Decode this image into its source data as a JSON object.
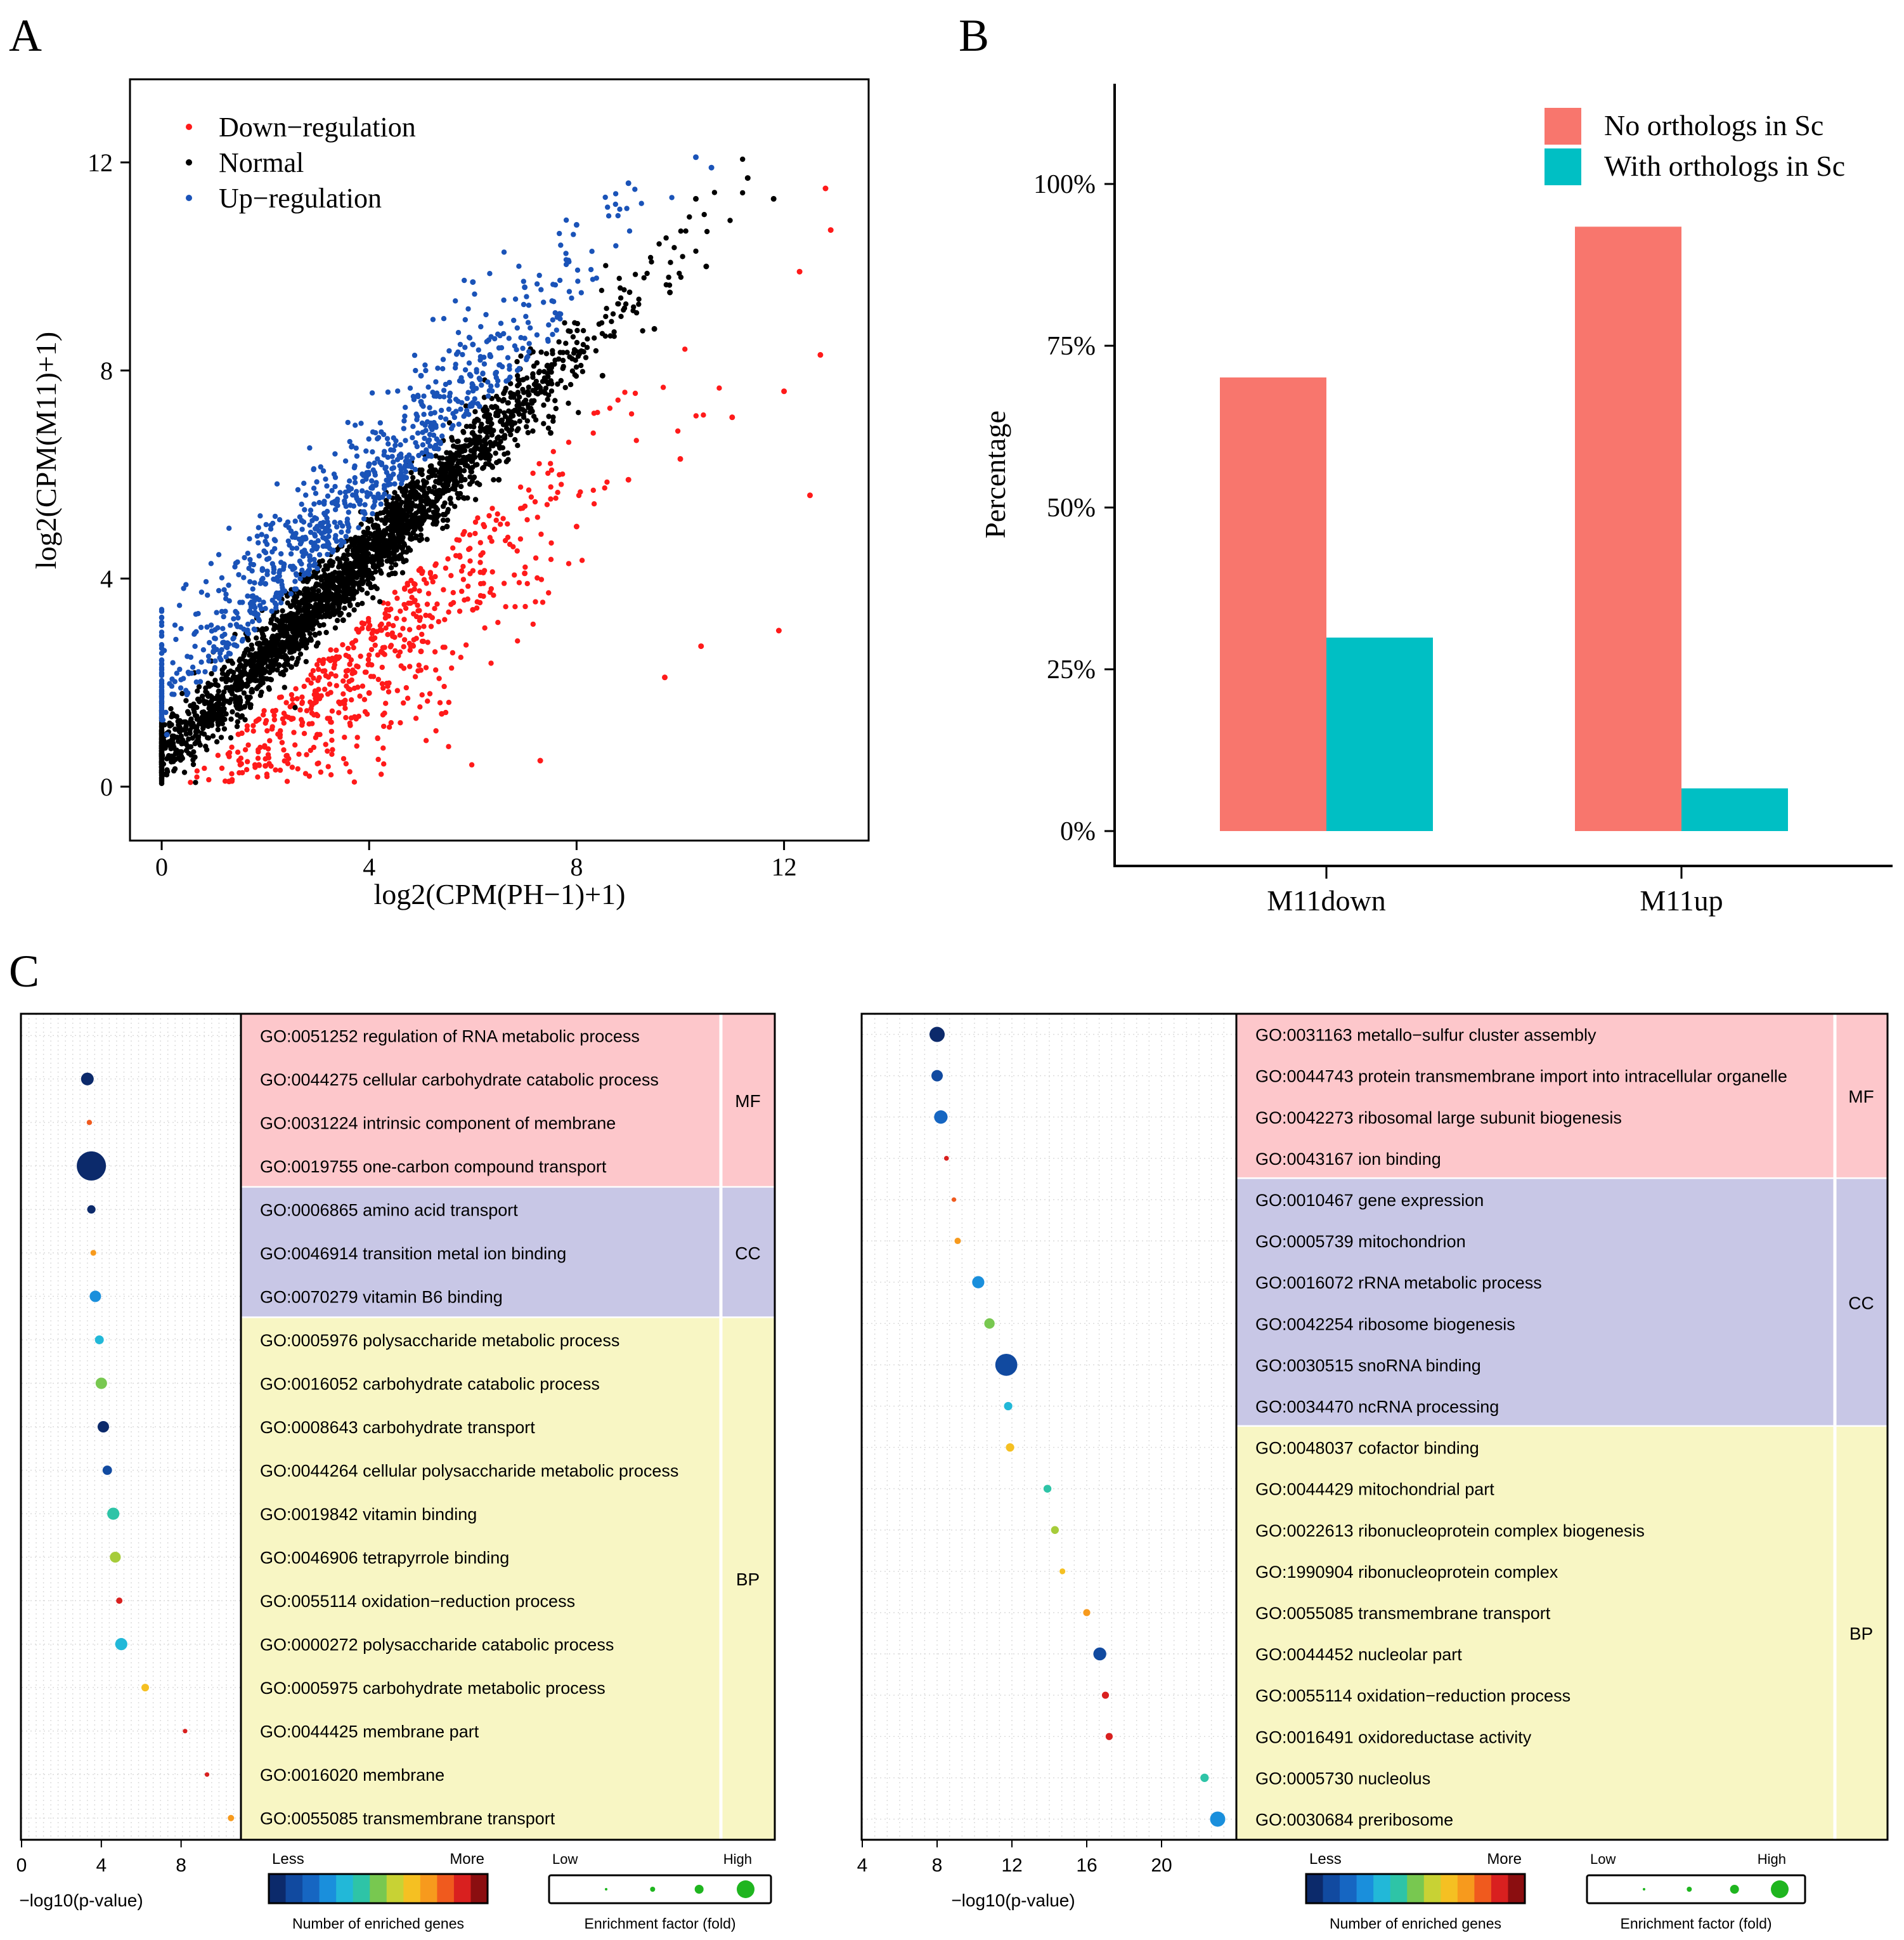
{
  "panels": {
    "a": "A",
    "b": "B",
    "c": "C"
  },
  "colors": {
    "down": "#ff1a1a",
    "normal": "#000000",
    "up": "#1a53b8",
    "bar_no": "#f8766d",
    "bar_with": "#00bfc4",
    "mf_bg": "#fdc7cb",
    "cc_bg": "#c8c7e6",
    "bp_bg": "#f8f6c4",
    "colorbar": [
      "#0c2a6b",
      "#114aa0",
      "#1666c2",
      "#1a8fdc",
      "#22b8d8",
      "#2ec4a7",
      "#78c850",
      "#c8d234",
      "#f5c022",
      "#f79a1d",
      "#f05a1e",
      "#d9201f",
      "#8b0e10"
    ]
  },
  "chart_data": [
    {
      "type": "scatter",
      "title": "",
      "xlabel": "log2(CPM(PH−1)+1)",
      "ylabel": "log2(CPM(M11)+1)",
      "xlim": [
        -0.6,
        13.3
      ],
      "ylim": [
        -0.6,
        13.5
      ],
      "xticks": [
        "0",
        "4",
        "8",
        "12"
      ],
      "yticks": [
        "0",
        "4",
        "8",
        "12"
      ],
      "legend_position": "top-left",
      "series": [
        {
          "name": "Down−regulation",
          "color": "#ff1a1a",
          "points": [
            [
              1.3,
              0.1
            ],
            [
              2,
              0.4
            ],
            [
              3,
              1.0
            ],
            [
              4,
              1.8
            ],
            [
              5,
              2.6
            ],
            [
              6,
              3.4
            ],
            [
              7,
              4.1
            ],
            [
              8,
              5.0
            ],
            [
              9,
              5.9
            ],
            [
              10,
              6.3
            ],
            [
              11,
              7.1
            ],
            [
              12,
              7.6
            ],
            [
              12.8,
              11.5
            ],
            [
              12.9,
              10.7
            ],
            [
              12.3,
              9.9
            ],
            [
              12.7,
              8.3
            ],
            [
              12.5,
              5.6
            ],
            [
              11.9,
              3.0
            ],
            [
              10.4,
              2.7
            ],
            [
              9.7,
              2.1
            ],
            [
              7.3,
              0.5
            ],
            [
              5.4,
              1.4
            ]
          ]
        },
        {
          "name": "Normal",
          "color": "#000000",
          "points": [
            [
              0.7,
              0.9
            ],
            [
              1.5,
              1.5
            ],
            [
              2.5,
              2.3
            ],
            [
              3.5,
              3.2
            ],
            [
              4.5,
              4.1
            ],
            [
              5.5,
              5.0
            ],
            [
              6.5,
              5.9
            ],
            [
              7.5,
              6.8
            ],
            [
              8.5,
              7.9
            ],
            [
              9.5,
              8.8
            ],
            [
              10.5,
              10.0
            ],
            [
              11.3,
              11.7
            ],
            [
              11.8,
              11.3
            ],
            [
              10.3,
              11.3
            ],
            [
              9.8,
              9.5
            ]
          ]
        },
        {
          "name": "Up−regulation",
          "color": "#1a53b8",
          "points": [
            [
              0.1,
              1.0
            ],
            [
              0.5,
              1.8
            ],
            [
              1,
              2.6
            ],
            [
              2,
              3.9
            ],
            [
              3,
              5.0
            ],
            [
              4,
              6.2
            ],
            [
              5,
              7.4
            ],
            [
              6,
              8.5
            ],
            [
              7,
              9.6
            ],
            [
              8,
              10.8
            ],
            [
              9,
              11.6
            ],
            [
              10.3,
              12.1
            ],
            [
              10.6,
              11.9
            ],
            [
              6,
              9.7
            ],
            [
              5,
              7.9
            ]
          ]
        }
      ],
      "legend": [
        "Down−regulation",
        "Normal",
        "Up−regulation"
      ]
    },
    {
      "type": "bar",
      "xlabel": "",
      "ylabel": "Percentage",
      "categories": [
        "M11down",
        "M11up"
      ],
      "ylim": [
        0,
        110
      ],
      "yticks": [
        "0%",
        "25%",
        "50%",
        "75%",
        "100%"
      ],
      "legend_position": "top-right",
      "series": [
        {
          "name": "No orthologs in Sc",
          "values": [
            70.1,
            93.4
          ]
        },
        {
          "name": "With orthologs in Sc",
          "values": [
            29.9,
            6.6
          ]
        }
      ]
    },
    {
      "type": "scatter",
      "xlabel": "−log10(p-value)",
      "xlim": [
        0,
        11
      ],
      "xticks": [
        "0",
        "4",
        "8"
      ],
      "legend_size": {
        "title": "Enrichment factor (fold)",
        "low": "Low",
        "high": "High"
      },
      "legend_color": {
        "title": "Number of enriched genes",
        "low": "Less",
        "high": "More"
      },
      "categories": [
        {
          "label": "MF",
          "terms": [
            {
              "term": "GO:0051252 regulation of RNA metabolic process",
              "p": null,
              "size": 0,
              "color": null
            },
            {
              "term": "GO:0044275 cellular carbohydrate catabolic process",
              "p": 3.3,
              "size": 0.35,
              "color": "#0c2a6b"
            },
            {
              "term": "GO:0031224 intrinsic component of membrane",
              "p": 3.4,
              "size": 0.06,
              "color": "#f05a1e"
            },
            {
              "term": "GO:0019755 one-carbon compound transport",
              "p": 3.5,
              "size": 1.0,
              "color": "#0c2a6b"
            }
          ]
        },
        {
          "label": "CC",
          "terms": [
            {
              "term": "GO:0006865 amino acid transport",
              "p": 3.5,
              "size": 0.18,
              "color": "#0c2a6b"
            },
            {
              "term": "GO:0046914 transition metal ion binding",
              "p": 3.6,
              "size": 0.08,
              "color": "#f79a1d"
            },
            {
              "term": "GO:0070279 vitamin B6 binding",
              "p": 3.7,
              "size": 0.3,
              "color": "#1a8fdc"
            }
          ]
        },
        {
          "label": "BP",
          "terms": [
            {
              "term": "GO:0005976 polysaccharide metabolic process",
              "p": 3.9,
              "size": 0.2,
              "color": "#22b8d8"
            },
            {
              "term": "GO:0016052 carbohydrate catabolic process",
              "p": 4.0,
              "size": 0.3,
              "color": "#78c850"
            },
            {
              "term": "GO:0008643 carbohydrate transport",
              "p": 4.1,
              "size": 0.3,
              "color": "#0c2a6b"
            },
            {
              "term": "GO:0044264 cellular polysaccharide metabolic process",
              "p": 4.3,
              "size": 0.22,
              "color": "#114aa0"
            },
            {
              "term": "GO:0019842 vitamin binding",
              "p": 4.6,
              "size": 0.33,
              "color": "#2ec4a7"
            },
            {
              "term": "GO:0046906 tetrapyrrole binding",
              "p": 4.7,
              "size": 0.28,
              "color": "#a6cc3a"
            },
            {
              "term": "GO:0055114 oxidation−reduction process",
              "p": 4.9,
              "size": 0.1,
              "color": "#d9201f"
            },
            {
              "term": "GO:0000272 polysaccharide catabolic process",
              "p": 5.0,
              "size": 0.33,
              "color": "#22b8d8"
            },
            {
              "term": "GO:0005975 carbohydrate metabolic process",
              "p": 6.2,
              "size": 0.15,
              "color": "#f5c022"
            },
            {
              "term": "GO:0044425 membrane part",
              "p": 8.2,
              "size": 0.03,
              "color": "#d9201f"
            },
            {
              "term": "GO:0016020 membrane",
              "p": 9.3,
              "size": 0.03,
              "color": "#d9201f"
            },
            {
              "term": "GO:0055085 transmembrane transport",
              "p": 10.5,
              "size": 0.1,
              "color": "#f79a1d"
            }
          ]
        }
      ]
    },
    {
      "type": "scatter",
      "xlabel": "−log10(p-value)",
      "xlim": [
        4,
        24
      ],
      "xticks": [
        "4",
        "8",
        "12",
        "16",
        "20"
      ],
      "legend_size": {
        "title": "Enrichment factor (fold)",
        "low": "Low",
        "high": "High"
      },
      "legend_color": {
        "title": "Number of enriched genes",
        "low": "Less",
        "high": "More"
      },
      "categories": [
        {
          "label": "MF",
          "terms": [
            {
              "term": "GO:0031163 metallo−sulfur cluster assembly",
              "p": 8.0,
              "size": 0.45,
              "color": "#0c2a6b"
            },
            {
              "term": "GO:0044743 protein transmembrane import into intracellular organelle",
              "p": 8.0,
              "size": 0.3,
              "color": "#114aa0"
            },
            {
              "term": "GO:0042273 ribosomal large subunit biogenesis",
              "p": 8.2,
              "size": 0.38,
              "color": "#1666c2"
            },
            {
              "term": "GO:0043167 ion binding",
              "p": 8.5,
              "size": 0.04,
              "color": "#d9201f"
            }
          ]
        },
        {
          "label": "CC",
          "terms": [
            {
              "term": "GO:0010467 gene expression",
              "p": 8.9,
              "size": 0.03,
              "color": "#f05a1e"
            },
            {
              "term": "GO:0005739 mitochondrion",
              "p": 9.1,
              "size": 0.1,
              "color": "#f79a1d"
            },
            {
              "term": "GO:0016072 rRNA metabolic process",
              "p": 10.2,
              "size": 0.33,
              "color": "#1a8fdc"
            },
            {
              "term": "GO:0042254 ribosome biogenesis",
              "p": 10.8,
              "size": 0.26,
              "color": "#78c850"
            },
            {
              "term": "GO:0030515 snoRNA binding",
              "p": 11.7,
              "size": 0.72,
              "color": "#114aa0"
            },
            {
              "term": "GO:0034470 ncRNA processing",
              "p": 11.8,
              "size": 0.18,
              "color": "#22b8d8"
            }
          ]
        },
        {
          "label": "BP",
          "terms": [
            {
              "term": "GO:0048037 cofactor binding",
              "p": 11.9,
              "size": 0.18,
              "color": "#f5c022"
            },
            {
              "term": "GO:0044429 mitochondrial part",
              "p": 13.9,
              "size": 0.16,
              "color": "#2ec4a7"
            },
            {
              "term": "GO:0022613 ribonucleoprotein complex biogenesis",
              "p": 14.3,
              "size": 0.16,
              "color": "#a6cc3a"
            },
            {
              "term": "GO:1990904 ribonucleoprotein complex",
              "p": 14.7,
              "size": 0.08,
              "color": "#f5c022"
            },
            {
              "term": "GO:0055085 transmembrane transport",
              "p": 16.0,
              "size": 0.13,
              "color": "#f79a1d"
            },
            {
              "term": "GO:0044452 nucleolar part",
              "p": 16.7,
              "size": 0.36,
              "color": "#114aa0"
            },
            {
              "term": "GO:0055114 oxidation−reduction process",
              "p": 17.0,
              "size": 0.13,
              "color": "#d9201f"
            },
            {
              "term": "GO:0016491 oxidoreductase activity",
              "p": 17.2,
              "size": 0.13,
              "color": "#d9201f"
            },
            {
              "term": "GO:0005730 nucleolus",
              "p": 22.3,
              "size": 0.18,
              "color": "#2ec4a7"
            },
            {
              "term": "GO:0030684 preribosome",
              "p": 23.0,
              "size": 0.45,
              "color": "#1a8fdc"
            }
          ]
        }
      ]
    }
  ]
}
